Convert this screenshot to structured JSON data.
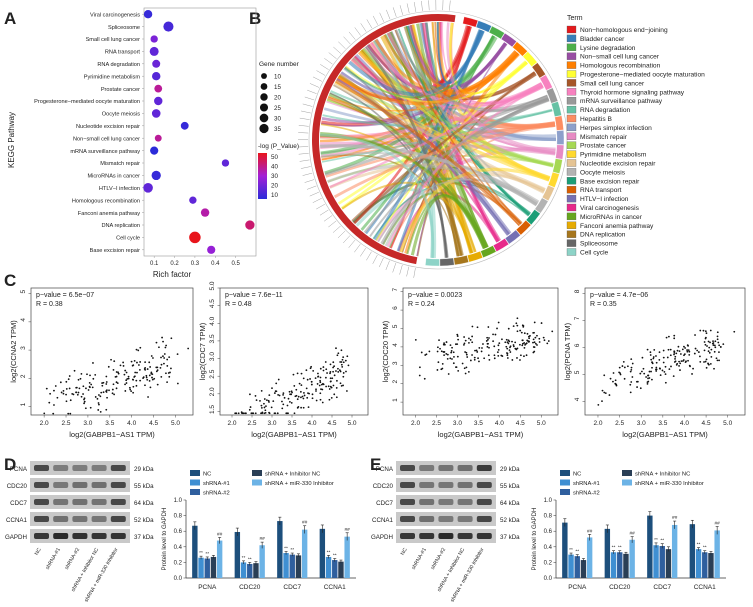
{
  "panels": {
    "A": "A",
    "B": "B",
    "C": "C",
    "D": "D",
    "E": "E"
  },
  "panelA": {
    "ylabel": "KEGG Pathway",
    "xlabel": "Rich factor",
    "xticks": [
      0.1,
      0.2,
      0.3,
      0.4,
      0.5
    ],
    "size_legend_title": "Gene number",
    "size_legend": [
      10,
      15,
      20,
      25,
      30,
      35
    ],
    "color_legend_title": "-log (P_Value)",
    "color_legend_ticks": [
      50,
      40,
      30,
      20,
      10
    ],
    "colors": {
      "high": "#e8141b",
      "mid": "#a31fd6",
      "low": "#2b2bd9"
    }
  },
  "panelB": {
    "legend_title": "Term",
    "terms": [
      {
        "label": "Non−homologous end−joining",
        "color": "#e41a1c"
      },
      {
        "label": "Bladder cancer",
        "color": "#377eb8"
      },
      {
        "label": "Lysine degradation",
        "color": "#4daf4a"
      },
      {
        "label": "Non−small cell lung cancer",
        "color": "#984ea3"
      },
      {
        "label": "Homologous recombination",
        "color": "#ff7f00"
      },
      {
        "label": "Progesterone−mediated oocyte maturation",
        "color": "#ffff33"
      },
      {
        "label": "Small cell lung cancer",
        "color": "#a65628"
      },
      {
        "label": "Thyroid hormone signaling pathway",
        "color": "#f781bf"
      },
      {
        "label": "mRNA surveillance pathway",
        "color": "#999999"
      },
      {
        "label": "RNA degradation",
        "color": "#66c2a5"
      },
      {
        "label": "Hepatitis B",
        "color": "#fc8d62"
      },
      {
        "label": "Herpes simplex infection",
        "color": "#8da0cb"
      },
      {
        "label": "Mismatch repair",
        "color": "#e78ac3"
      },
      {
        "label": "Prostate cancer",
        "color": "#a6d854"
      },
      {
        "label": "Pyrimidine metabolism",
        "color": "#ffd92f"
      },
      {
        "label": "Nucleotide excision repair",
        "color": "#e5c494"
      },
      {
        "label": "Oocyte meiosis",
        "color": "#b3b3b3"
      },
      {
        "label": "Base excision repair",
        "color": "#1b9e77"
      },
      {
        "label": "RNA transport",
        "color": "#d95f02"
      },
      {
        "label": "HTLV−I infection",
        "color": "#7570b3"
      },
      {
        "label": "Viral carcinogenesis",
        "color": "#e7298a"
      },
      {
        "label": "MicroRNAs in cancer",
        "color": "#66a61e"
      },
      {
        "label": "Fanconi anemia pathway",
        "color": "#e6ab02"
      },
      {
        "label": "DNA replication",
        "color": "#a6761d"
      },
      {
        "label": "Spliceosome",
        "color": "#666666"
      },
      {
        "label": "Cell cycle",
        "color": "#8dd3c7"
      }
    ]
  },
  "panelC": {
    "xlabel": "log2(GABPB1−AS1 TPM)",
    "plots": [
      {
        "ylabel": "log2(CCNA2 TPM)",
        "pval": "p−value = 6.5e−07",
        "r": "R = 0.38",
        "ylim": [
          0.7,
          5.2
        ],
        "yticks": [
          1,
          2,
          3,
          4,
          5
        ],
        "xticks": [
          2.0,
          2.5,
          3.0,
          3.5,
          4.0,
          4.5,
          5.0
        ],
        "seed": 11,
        "slope": 0.55,
        "inter": 1.0,
        "noise": 0.75
      },
      {
        "ylabel": "log2(CDC7 TPM)",
        "pval": "p−value = 7.6e−11",
        "r": "R = 0.48",
        "ylim": [
          1.4,
          5.0
        ],
        "yticks": [
          1.5,
          2.0,
          2.5,
          3.0,
          3.5,
          4.0,
          4.5,
          5.0
        ],
        "xticks": [
          2.0,
          2.5,
          3.0,
          3.5,
          4.0,
          4.5,
          5.0
        ],
        "seed": 23,
        "slope": 0.6,
        "inter": 1.0,
        "noise": 0.55
      },
      {
        "ylabel": "log2(CDC20 TPM)",
        "pval": "p−value = 0.0023",
        "r": "R = 0.24",
        "ylim": [
          0.3,
          7.2
        ],
        "yticks": [
          1,
          2,
          3,
          4,
          5,
          6,
          7
        ],
        "xticks": [
          2.0,
          2.5,
          3.0,
          3.5,
          4.0,
          4.5,
          5.0
        ],
        "seed": 37,
        "slope": 0.45,
        "inter": 3.2,
        "noise": 0.9
      },
      {
        "ylabel": "log2(PCNA TPM)",
        "pval": "p−value = 4.7e−06",
        "r": "R = 0.35",
        "ylim": [
          3.5,
          8.2
        ],
        "yticks": [
          4,
          5,
          6,
          7,
          8
        ],
        "xticks": [
          1.5,
          2.0,
          2.5,
          3.0,
          3.5,
          4.0,
          4.5,
          5.0
        ],
        "seed": 53,
        "slope": 0.55,
        "inter": 4.6,
        "noise": 0.7
      }
    ]
  },
  "blot": {
    "proteins": [
      "PCNA",
      "CDC20",
      "CDC7",
      "CCNA1",
      "GAPDH"
    ],
    "sizes": [
      "29 kDa",
      "55 kDa",
      "64 kDa",
      "52 kDa",
      "37 kDa"
    ],
    "lanes": [
      "NC",
      "shRNA-#1",
      "shRNA-#2",
      "shRNA + Inhibitor NC",
      "shRNA + miR-330 Inhibitor"
    ]
  },
  "chart_data": [
    {
      "type": "bar",
      "panel": "D",
      "ylabel": "Protein level to GAPDH",
      "ylim": [
        0,
        1.0
      ],
      "yticks": [
        0.0,
        0.2,
        0.4,
        0.6,
        0.8,
        1.0
      ],
      "categories": [
        "PCNA",
        "CDC20",
        "CDC7",
        "CCNA1"
      ],
      "series": [
        {
          "name": "NC",
          "color": "#1d4f7c",
          "values": [
            0.67,
            0.59,
            0.73,
            0.63
          ],
          "errors": [
            0.05,
            0.05,
            0.05,
            0.05
          ],
          "marks": [
            "",
            "",
            "",
            ""
          ]
        },
        {
          "name": "shRNA-#1",
          "color": "#3f8fd2",
          "values": [
            0.26,
            0.2,
            0.32,
            0.27
          ],
          "errors": [
            0.02,
            0.02,
            0.02,
            0.02
          ],
          "marks": [
            "**",
            "**",
            "**",
            "**"
          ]
        },
        {
          "name": "shRNA-#2",
          "color": "#2f5f9e",
          "values": [
            0.25,
            0.18,
            0.3,
            0.23
          ],
          "errors": [
            0.02,
            0.02,
            0.02,
            0.02
          ],
          "marks": [
            "**",
            "**",
            "**",
            "**"
          ]
        },
        {
          "name": "shRNA + Inhibitor NC",
          "color": "#2a3f56",
          "values": [
            0.27,
            0.19,
            0.29,
            0.21
          ],
          "errors": [
            0.02,
            0.02,
            0.02,
            0.02
          ],
          "marks": [
            "",
            "",
            "",
            ""
          ]
        },
        {
          "name": "shRNA + miR-330 Inhibitor",
          "color": "#6cb3e6",
          "values": [
            0.48,
            0.42,
            0.62,
            0.53
          ],
          "errors": [
            0.04,
            0.04,
            0.05,
            0.05
          ],
          "marks": [
            "##",
            "##",
            "##",
            "##"
          ]
        }
      ],
      "legend_order": [
        "NC",
        "shRNA + Inhibitor NC",
        "shRNA-#1",
        "shRNA + miR-330 Inhibitor",
        "shRNA-#2"
      ]
    },
    {
      "type": "bar",
      "panel": "E",
      "ylabel": "Protein level to GAPDH",
      "ylim": [
        0,
        1.0
      ],
      "yticks": [
        0.0,
        0.2,
        0.4,
        0.6,
        0.8,
        1.0
      ],
      "categories": [
        "PCNA",
        "CDC20",
        "CDC7",
        "CCNA1"
      ],
      "series": [
        {
          "name": "NC",
          "color": "#1d4f7c",
          "values": [
            0.71,
            0.63,
            0.8,
            0.69
          ],
          "errors": [
            0.05,
            0.05,
            0.05,
            0.05
          ],
          "marks": [
            "",
            "",
            "",
            ""
          ]
        },
        {
          "name": "shRNA-#1",
          "color": "#3f8fd2",
          "values": [
            0.3,
            0.33,
            0.42,
            0.37
          ],
          "errors": [
            0.02,
            0.02,
            0.03,
            0.02
          ],
          "marks": [
            "**",
            "**",
            "**",
            "**"
          ]
        },
        {
          "name": "shRNA-#2",
          "color": "#2f5f9e",
          "values": [
            0.28,
            0.33,
            0.41,
            0.33
          ],
          "errors": [
            0.02,
            0.02,
            0.03,
            0.02
          ],
          "marks": [
            "**",
            "**",
            "**",
            "**"
          ]
        },
        {
          "name": "shRNA + Inhibitor NC",
          "color": "#2a3f56",
          "values": [
            0.23,
            0.31,
            0.37,
            0.32
          ],
          "errors": [
            0.02,
            0.02,
            0.03,
            0.02
          ],
          "marks": [
            "",
            "",
            "",
            ""
          ]
        },
        {
          "name": "shRNA + miR-330 Inhibitor",
          "color": "#6cb3e6",
          "values": [
            0.52,
            0.49,
            0.68,
            0.61
          ],
          "errors": [
            0.04,
            0.04,
            0.05,
            0.05
          ],
          "marks": [
            "##",
            "##",
            "##",
            "##"
          ]
        }
      ],
      "legend_order": [
        "NC",
        "shRNA + Inhibitor NC",
        "shRNA-#1",
        "shRNA + miR-330 Inhibitor",
        "shRNA-#2"
      ]
    },
    {
      "type": "scatter",
      "panel": "A",
      "xlabel": "Rich factor",
      "ylabel": "KEGG Pathway",
      "xlim": [
        0.05,
        0.6
      ],
      "points": [
        {
          "pathway": "Viral carcinogenesis",
          "x": 0.07,
          "size": 15,
          "logp": 12
        },
        {
          "pathway": "Spliceosome",
          "x": 0.17,
          "size": 25,
          "logp": 15
        },
        {
          "pathway": "Small cell lung cancer",
          "x": 0.1,
          "size": 10,
          "logp": 25
        },
        {
          "pathway": "RNA transport",
          "x": 0.1,
          "size": 18,
          "logp": 20
        },
        {
          "pathway": "RNA degradation",
          "x": 0.11,
          "size": 13,
          "logp": 22
        },
        {
          "pathway": "Pyrimidine metabolism",
          "x": 0.11,
          "size": 15,
          "logp": 18
        },
        {
          "pathway": "Prostate cancer",
          "x": 0.12,
          "size": 12,
          "logp": 40
        },
        {
          "pathway": "Progesterone−mediated oocyte maturation",
          "x": 0.12,
          "size": 15,
          "logp": 20
        },
        {
          "pathway": "Oocyte meiosis",
          "x": 0.11,
          "size": 16,
          "logp": 20
        },
        {
          "pathway": "Nucleotide excision repair",
          "x": 0.25,
          "size": 12,
          "logp": 12
        },
        {
          "pathway": "Non−small cell lung cancer",
          "x": 0.12,
          "size": 8,
          "logp": 40
        },
        {
          "pathway": "mRNA surveillance pathway",
          "x": 0.1,
          "size": 14,
          "logp": 10
        },
        {
          "pathway": "Mismatch repair",
          "x": 0.45,
          "size": 10,
          "logp": 20
        },
        {
          "pathway": "MicroRNAs in cancer",
          "x": 0.11,
          "size": 20,
          "logp": 12
        },
        {
          "pathway": "HTLV−I infection",
          "x": 0.07,
          "size": 22,
          "logp": 20
        },
        {
          "pathway": "Homologous recombination",
          "x": 0.29,
          "size": 10,
          "logp": 20
        },
        {
          "pathway": "Fanconi anemia pathway",
          "x": 0.35,
          "size": 15,
          "logp": 38
        },
        {
          "pathway": "DNA replication",
          "x": 0.57,
          "size": 20,
          "logp": 45
        },
        {
          "pathway": "Cell cycle",
          "x": 0.3,
          "size": 35,
          "logp": 55
        },
        {
          "pathway": "Base excision repair",
          "x": 0.38,
          "size": 14,
          "logp": 30
        }
      ]
    }
  ]
}
